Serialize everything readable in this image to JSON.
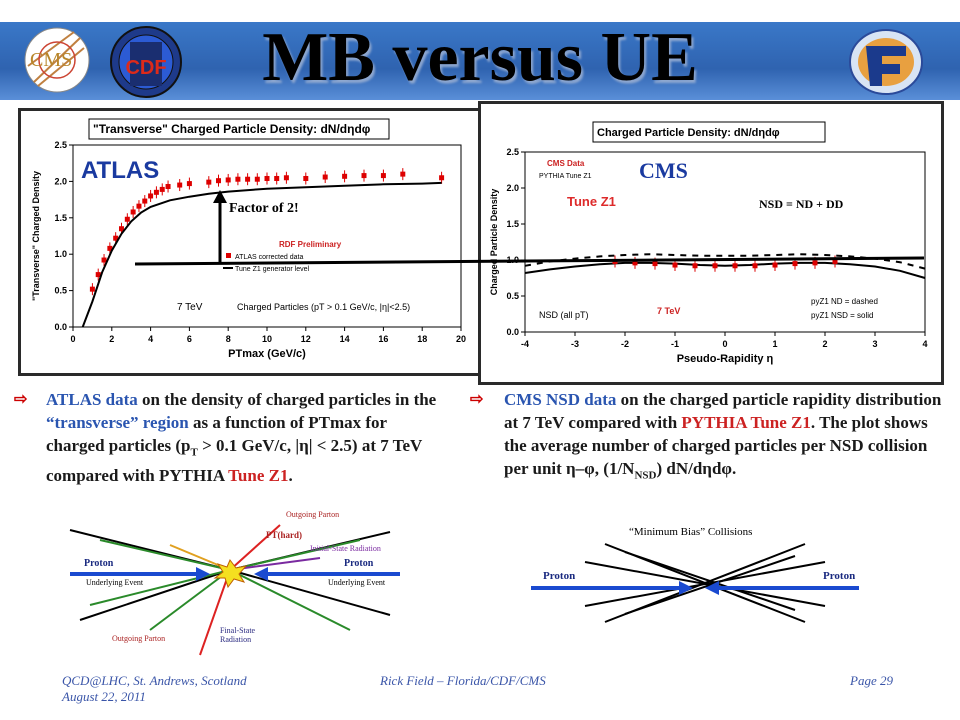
{
  "slide": {
    "title": "MB versus UE",
    "logos": {
      "cms": "CMS",
      "cdf": "CDF"
    }
  },
  "atlas_plot": {
    "overlay_label": "ATLAS",
    "annotation": "Factor of 2!",
    "chart_data": {
      "type": "scatter",
      "title": "\"Transverse\" Charged Particle Density: dN/dηdφ",
      "xlabel": "PTmax (GeV/c)",
      "ylabel": "\"Transverse\" Charged Density",
      "xlim": [
        0,
        20
      ],
      "ylim": [
        0,
        2.5
      ],
      "xticks": [
        "0",
        "2",
        "4",
        "6",
        "8",
        "10",
        "12",
        "14",
        "16",
        "18",
        "20"
      ],
      "yticks": [
        "0.0",
        "0.5",
        "1.0",
        "1.5",
        "2.0",
        "2.5"
      ],
      "series": [
        {
          "type": "points",
          "color": "#dd0000",
          "x": [
            1.0,
            1.3,
            1.6,
            1.9,
            2.2,
            2.5,
            2.8,
            3.1,
            3.4,
            3.7,
            4.0,
            4.3,
            4.6,
            4.9,
            5.5,
            6.0,
            7.0,
            7.5,
            8.0,
            8.5,
            9.0,
            9.5,
            10.0,
            10.5,
            11.0,
            12.0,
            13.0,
            14.0,
            15.0,
            16.0,
            17.0,
            19.0
          ],
          "y": [
            0.52,
            0.72,
            0.92,
            1.08,
            1.22,
            1.35,
            1.48,
            1.58,
            1.66,
            1.73,
            1.8,
            1.85,
            1.89,
            1.93,
            1.95,
            1.97,
            1.99,
            2.01,
            2.02,
            2.03,
            2.03,
            2.03,
            2.04,
            2.04,
            2.05,
            2.04,
            2.06,
            2.07,
            2.08,
            2.08,
            2.1,
            2.05
          ]
        },
        {
          "type": "curve",
          "color": "#000000",
          "x": [
            0.5,
            1,
            1.5,
            2,
            2.5,
            3,
            3.5,
            4,
            5,
            6,
            7,
            8,
            10,
            12,
            14,
            16,
            18,
            19
          ],
          "y": [
            0.0,
            0.35,
            0.75,
            1.05,
            1.28,
            1.45,
            1.57,
            1.65,
            1.74,
            1.79,
            1.83,
            1.86,
            1.9,
            1.92,
            1.94,
            1.96,
            1.97,
            1.98
          ]
        }
      ],
      "legend": {
        "rdf": "RDF Preliminary",
        "atlas_line": "ATLAS corrected data",
        "tune_line": "Tune Z1 generator level",
        "energy": "7 TeV",
        "cuts": "Charged Particles (pT > 0.1 GeV/c, |η|<2.5)"
      }
    }
  },
  "cms_plot": {
    "overlay_label": "CMS",
    "tune_label": "Tune Z1",
    "nsd_eq": "NSD = ND + DD",
    "chart_data": {
      "type": "line",
      "title": "Charged Particle Density: dN/dηdφ",
      "xlabel": "Pseudo-Rapidity η",
      "ylabel": "Charged Particle Density",
      "xlim": [
        -4,
        4
      ],
      "ylim": [
        0,
        2.5
      ],
      "xticks": [
        "-4",
        "-3",
        "-2",
        "-1",
        "0",
        "1",
        "2",
        "3",
        "4"
      ],
      "yticks": [
        "0.0",
        "0.5",
        "1.0",
        "1.5",
        "2.0",
        "2.5"
      ],
      "series": [
        {
          "name": "pyZ1 NSD = solid",
          "style": "solid",
          "color": "#000000",
          "x": [
            -4,
            -3.5,
            -3,
            -2.5,
            -2,
            -1.5,
            -1,
            -0.5,
            0,
            0.5,
            1,
            1.5,
            2,
            2.5,
            3,
            3.5,
            4
          ],
          "y": [
            0.82,
            0.87,
            0.91,
            0.94,
            0.96,
            0.96,
            0.95,
            0.93,
            0.92,
            0.93,
            0.95,
            0.96,
            0.96,
            0.94,
            0.91,
            0.85,
            0.75
          ]
        },
        {
          "name": "pyZ1 ND = dashed",
          "style": "dashed",
          "color": "#000000",
          "x": [
            -4,
            -3.5,
            -3,
            -2.5,
            -2,
            -1.5,
            -1,
            -0.5,
            0,
            0.5,
            1,
            1.5,
            2,
            2.5,
            3,
            3.5,
            4
          ],
          "y": [
            0.92,
            0.98,
            1.02,
            1.05,
            1.07,
            1.08,
            1.07,
            1.06,
            1.06,
            1.06,
            1.07,
            1.08,
            1.07,
            1.05,
            1.02,
            0.97,
            0.88
          ]
        },
        {
          "name": "CMS Data",
          "style": "points",
          "color": "#dd0000",
          "x": [
            -2.2,
            -1.8,
            -1.4,
            -1.0,
            -0.6,
            -0.2,
            0.2,
            0.6,
            1.0,
            1.4,
            1.8,
            2.2
          ],
          "y": [
            0.98,
            0.96,
            0.95,
            0.93,
            0.92,
            0.92,
            0.92,
            0.92,
            0.93,
            0.95,
            0.96,
            0.98
          ]
        }
      ],
      "legend": {
        "cms_data": "CMS Data",
        "pythia": "PYTHIA Tune Z1",
        "energy": "7 TeV",
        "nsd": "NSD (all pT)",
        "nd_dashed": "pyZ1 ND = dashed",
        "nsd_solid": "pyZ1 NSD = solid"
      }
    }
  },
  "bullets": {
    "left": {
      "p1": "ATLAS data",
      "p2": " on the density of charged particles in the ",
      "p3": "“transverse” region",
      "p4": " as a function of PTmax for charged particles (p",
      "sub": "T",
      "p5": " > 0.1 GeV/c, |η| < 2.5) at 7 TeV compared with PYTHIA ",
      "p6": "Tune Z1",
      "p7": "."
    },
    "right": {
      "p1": "CMS NSD data",
      "p2": " on the charged particle rapidity distribution at 7 TeV compared with ",
      "p3": "PYTHIA Tune Z1",
      "p4": ".  The plot shows the average number of charged particles per NSD collision per unit η–φ, (1/N",
      "sub": "NSD",
      "p5": ") dN/dηdφ."
    }
  },
  "diagrams": {
    "left": {
      "proton_left": "Proton",
      "proton_right": "Proton",
      "outgoing_top": "Outgoing Parton",
      "pt_hard": "PT(hard)",
      "isr": "Initial-State Radiation",
      "ue_left": "Underlying Event",
      "ue_right": "Underlying Event",
      "outgoing_bottom": "Outgoing Parton",
      "fsr": "Final-State Radiation"
    },
    "right": {
      "title": "“Minimum Bias” Collisions",
      "proton_left": "Proton",
      "proton_right": "Proton"
    }
  },
  "footer": {
    "left_line1": "QCD@LHC, St. Andrews, Scotland",
    "left_line2": "August 22, 2011",
    "center": "Rick Field – Florida/CDF/CMS",
    "right": "Page 29"
  }
}
